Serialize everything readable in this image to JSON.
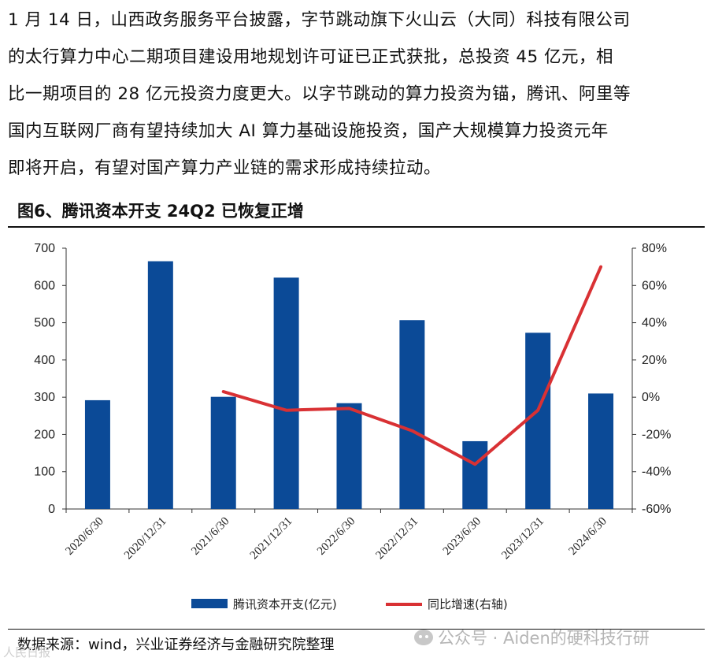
{
  "paragraph": {
    "lines": [
      "1 月 14 日，山西政务服务平台披露，字节跳动旗下火山云（大同）科技有限公司",
      "的太行算力中心二期项目建设用地规划许可证已正式获批，总投资 45 亿元，相",
      "比一期项目的 28 亿元投资力度更大。以字节跳动的算力投资为锚，腾讯、阿里等",
      "国内互联网厂商有望持续加大 AI 算力基础设施投资，国产大规模算力投资元年",
      "即将开启，有望对国产算力产业链的需求形成持续拉动。"
    ]
  },
  "figure_title": "图6、腾讯资本开支 24Q2 已恢复正增",
  "source_text": "数据来源：wind，兴业证券经济与金融研究院整理",
  "watermarks": {
    "left": "人民日报",
    "right": "公众号 · Aiden的硬科技行研"
  },
  "colors": {
    "bar": "#0b4a97",
    "line": "#d93134"
  },
  "chart_data": {
    "type": "bar+line",
    "categories": [
      "2020/6/30",
      "2020/12/31",
      "2021/6/30",
      "2021/12/31",
      "2022/6/30",
      "2022/12/31",
      "2023/6/30",
      "2023/12/31",
      "2024/6/30"
    ],
    "series": [
      {
        "name": "腾讯资本开支(亿元)",
        "type": "bar",
        "axis": "left",
        "values": [
          292,
          665,
          301,
          621,
          284,
          507,
          182,
          473,
          310
        ]
      },
      {
        "name": "同比增速(右轴)",
        "type": "line",
        "axis": "right",
        "values": [
          null,
          null,
          3,
          -7,
          -6,
          -18,
          -36,
          -7,
          70
        ]
      }
    ],
    "y_left": {
      "min": 0,
      "max": 700,
      "ticks": [
        "0",
        "100",
        "200",
        "300",
        "400",
        "500",
        "600",
        "700"
      ]
    },
    "y_right": {
      "min": -60,
      "max": 80,
      "ticks": [
        "-60%",
        "-40%",
        "-20%",
        "0%",
        "20%",
        "40%",
        "60%",
        "80%"
      ]
    },
    "legend_position": "bottom",
    "grid": false
  }
}
